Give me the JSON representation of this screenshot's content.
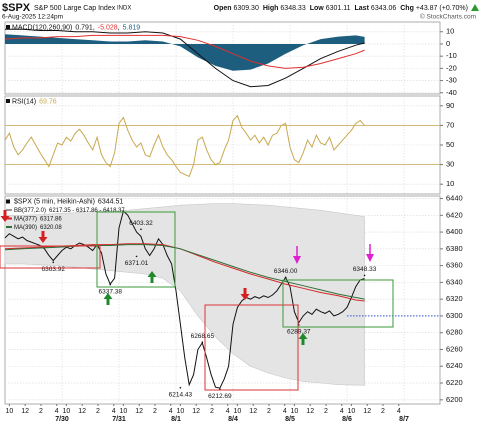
{
  "header": {
    "symbol": "$SPX",
    "name": "S&P 500 Large Cap Index",
    "exchange": "INDX",
    "date": "6-Aug-2025 12:24pm",
    "copyright": "© StockCharts.com",
    "quote": [
      {
        "label": "Open",
        "value": "6309.30"
      },
      {
        "label": "High",
        "value": "6348.33"
      },
      {
        "label": "Low",
        "value": "6301.11"
      },
      {
        "label": "Last",
        "value": "6343.06"
      },
      {
        "label": "Chg",
        "value": "+43.87 (+0.70%)"
      }
    ]
  },
  "chart_data": [
    {
      "type": "line",
      "title": "MACD(120,260,90)",
      "legend_separator": ",",
      "xlim": [
        0,
        49.6
      ],
      "ylim": [
        -41,
        18
      ],
      "yticks": [
        10,
        0,
        -10,
        -20,
        -30,
        -40
      ],
      "x": [
        0,
        2,
        4,
        6,
        8,
        10,
        12,
        14,
        16,
        18,
        20,
        22,
        24,
        26,
        28,
        30,
        32,
        34,
        36,
        38,
        40,
        41
      ],
      "series": [
        {
          "color": "#111111",
          "values": [
            12,
            12,
            11,
            11,
            10,
            10,
            9,
            9,
            10,
            9,
            4,
            -8,
            -20,
            -30,
            -35,
            -34,
            -28,
            -20,
            -12,
            -6,
            -1,
            0.791
          ]
        },
        {
          "color": "#e03030",
          "values": [
            4,
            5,
            5,
            6,
            6,
            7,
            7,
            7,
            7,
            7,
            6,
            3,
            -2,
            -8,
            -14,
            -18,
            -20,
            -19,
            -16,
            -12,
            -8,
            -5.028
          ]
        },
        {
          "type": "area",
          "color": "#1d5e7e",
          "values": [
            8,
            7,
            6,
            5,
            4,
            3,
            2,
            2,
            3,
            2,
            -2,
            -11,
            -18,
            -22,
            -21,
            -16,
            -8,
            -1,
            4,
            6,
            7,
            5.819
          ]
        }
      ]
    },
    {
      "type": "line",
      "title": "RSI(14)",
      "xlim": [
        0,
        49.6
      ],
      "ylim": [
        0,
        100
      ],
      "yticks": [
        90,
        70,
        50,
        30,
        10
      ],
      "thresholds": [
        70,
        30
      ],
      "threshold_color": "#c9a84f",
      "x": [
        0,
        0.5,
        1,
        1.5,
        2,
        2.5,
        3,
        3.5,
        4,
        4.5,
        5,
        5.5,
        6,
        6.5,
        7,
        7.5,
        8,
        8.5,
        9,
        9.5,
        10,
        10.5,
        11,
        11.5,
        12,
        12.5,
        13,
        13.5,
        14,
        14.5,
        15,
        15.5,
        16,
        16.5,
        17,
        17.5,
        18,
        18.5,
        19,
        19.5,
        20,
        20.5,
        21,
        21.5,
        22,
        22.5,
        23,
        23.5,
        24,
        24.5,
        25,
        25.5,
        26,
        26.5,
        27,
        27.5,
        28,
        28.5,
        29,
        29.5,
        30,
        30.5,
        31,
        31.5,
        32,
        32.5,
        33,
        33.5,
        34,
        34.5,
        35,
        35.5,
        36,
        36.5,
        37,
        37.5,
        38,
        38.5,
        39,
        39.5,
        40,
        40.5,
        41
      ],
      "series": [
        {
          "color": "#c9a84f",
          "values": [
            55,
            62,
            48,
            40,
            45,
            52,
            58,
            50,
            42,
            35,
            28,
            40,
            52,
            50,
            58,
            54,
            62,
            66,
            60,
            52,
            45,
            58,
            40,
            32,
            28,
            42,
            72,
            78,
            65,
            55,
            48,
            52,
            40,
            38,
            50,
            60,
            48,
            40,
            35,
            28,
            22,
            20,
            18,
            30,
            55,
            58,
            45,
            35,
            30,
            32,
            45,
            55,
            75,
            80,
            68,
            62,
            55,
            60,
            52,
            58,
            50,
            60,
            62,
            70,
            72,
            48,
            35,
            32,
            42,
            55,
            48,
            60,
            52,
            50,
            58,
            45,
            50,
            55,
            60,
            65,
            72,
            75,
            69.76
          ]
        }
      ]
    },
    {
      "type": "line",
      "xlim": [
        0,
        49.6
      ],
      "ylim": [
        6195,
        6443
      ],
      "yticks": [
        6440,
        6420,
        6400,
        6380,
        6360,
        6340,
        6320,
        6300,
        6280,
        6260,
        6240,
        6220,
        6200
      ],
      "xticks": [
        {
          "value": 0.5,
          "label": "10"
        },
        {
          "value": 2.3,
          "label": "12"
        },
        {
          "value": 4.1,
          "label": "2"
        },
        {
          "value": 5.9,
          "label": "4"
        },
        {
          "value": 7,
          "label": "10"
        },
        {
          "value": 8.8,
          "label": "12"
        },
        {
          "value": 10.6,
          "label": "2"
        },
        {
          "value": 12.4,
          "label": "4"
        },
        {
          "value": 13.5,
          "label": "10"
        },
        {
          "value": 15.3,
          "label": "12"
        },
        {
          "value": 17.1,
          "label": "2"
        },
        {
          "value": 18.9,
          "label": "4"
        },
        {
          "value": 20,
          "label": "10"
        },
        {
          "value": 21.8,
          "label": "12"
        },
        {
          "value": 23.6,
          "label": "2"
        },
        {
          "value": 25.4,
          "label": "4"
        },
        {
          "value": 26.5,
          "label": "10"
        },
        {
          "value": 28.3,
          "label": "12"
        },
        {
          "value": 30.1,
          "label": "2"
        },
        {
          "value": 31.9,
          "label": "4"
        },
        {
          "value": 33,
          "label": "10"
        },
        {
          "value": 34.8,
          "label": "12"
        },
        {
          "value": 36.6,
          "label": "2"
        },
        {
          "value": 38.4,
          "label": "4"
        },
        {
          "value": 39.5,
          "label": "10"
        },
        {
          "value": 41.3,
          "label": "12"
        },
        {
          "value": 43.1,
          "label": "2"
        },
        {
          "value": 44.9,
          "label": "4"
        }
      ],
      "date_ticks": [
        {
          "value": 6.5,
          "label": "7/30"
        },
        {
          "value": 13,
          "label": "7/31"
        },
        {
          "value": 19.5,
          "label": "8/1"
        },
        {
          "value": 26,
          "label": "8/4"
        },
        {
          "value": 32.5,
          "label": "8/5"
        },
        {
          "value": 39,
          "label": "8/6"
        },
        {
          "value": 45.5,
          "label": "8/7"
        }
      ],
      "series": [
        {
          "name": "$SPX (5 min, Heikin-Ashi)",
          "color": "#111111",
          "x": [
            0,
            0.5,
            1,
            1.5,
            2,
            2.5,
            3,
            3.5,
            4,
            4.5,
            5,
            5.5,
            6,
            6.5,
            7,
            7.5,
            8,
            8.5,
            9,
            9.5,
            10,
            10.5,
            11,
            11.5,
            12,
            12.5,
            13,
            13.5,
            14,
            14.5,
            15,
            15.5,
            16,
            16.5,
            17,
            17.5,
            18,
            18.5,
            19,
            19.5,
            20,
            20.5,
            21,
            21.5,
            22,
            22.5,
            23,
            23.5,
            24,
            24.5,
            25,
            25.5,
            26,
            26.5,
            27,
            27.5,
            28,
            28.5,
            29,
            29.5,
            30,
            30.5,
            31,
            31.5,
            32,
            32.5,
            33,
            33.5,
            34,
            34.5,
            35,
            35.5,
            36,
            36.5,
            37,
            37.5,
            38,
            38.5,
            39,
            39.5,
            40,
            40.5,
            41
          ],
          "values": [
            6393,
            6398,
            6395,
            6392,
            6394,
            6390,
            6388,
            6386,
            6384,
            6380,
            6372,
            6366,
            6372,
            6378,
            6382,
            6380,
            6384,
            6387,
            6385,
            6382,
            6378,
            6385,
            6375,
            6350,
            6338,
            6345,
            6405,
            6425,
            6420,
            6410,
            6400,
            6395,
            6380,
            6372,
            6380,
            6392,
            6385,
            6372,
            6362,
            6330,
            6290,
            6250,
            6218,
            6230,
            6260,
            6268,
            6250,
            6230,
            6215,
            6214,
            6225,
            6240,
            6290,
            6310,
            6318,
            6322,
            6320,
            6323,
            6321,
            6324,
            6322,
            6325,
            6330,
            6338,
            6346,
            6335,
            6305,
            6292,
            6300,
            6305,
            6302,
            6308,
            6305,
            6303,
            6306,
            6300,
            6302,
            6305,
            6310,
            6322,
            6335,
            6343,
            6344.51
          ]
        },
        {
          "name": "BB(377,2.0)",
          "type": "band",
          "legend_values": "6217.35 - 6317.86 - 6418.37",
          "color": "#e4e4e4",
          "x": [
            0,
            2,
            4,
            6,
            8,
            10,
            12,
            14,
            16,
            18,
            20,
            22,
            24,
            26,
            28,
            30,
            32,
            34,
            36,
            38,
            40,
            41
          ],
          "upper": [
            6420,
            6420,
            6421,
            6422,
            6423,
            6425,
            6425,
            6426,
            6428,
            6430,
            6432,
            6433,
            6434,
            6434,
            6433,
            6432,
            6430,
            6428,
            6426,
            6423,
            6420,
            6418.37
          ],
          "lower": [
            6362,
            6362,
            6361,
            6360,
            6358,
            6356,
            6354,
            6352,
            6350,
            6345,
            6330,
            6300,
            6275,
            6255,
            6240,
            6232,
            6226,
            6222,
            6220,
            6218,
            6217.5,
            6217.35
          ]
        },
        {
          "name": "MA(377)",
          "color": "#d62728",
          "x": [
            0,
            2,
            4,
            6,
            8,
            10,
            12,
            14,
            16,
            18,
            20,
            22,
            24,
            26,
            28,
            30,
            32,
            34,
            36,
            38,
            40,
            41
          ],
          "values": [
            6380,
            6381,
            6382,
            6383,
            6384,
            6385,
            6385,
            6386,
            6386,
            6385,
            6380,
            6372,
            6364,
            6357,
            6350,
            6344,
            6338,
            6333,
            6328,
            6324,
            6319,
            6317.86
          ]
        },
        {
          "name": "MA(390)",
          "color": "#2f6f3a",
          "x": [
            0,
            2,
            4,
            6,
            8,
            10,
            12,
            14,
            16,
            18,
            20,
            22,
            24,
            26,
            28,
            30,
            32,
            34,
            36,
            38,
            40,
            41
          ],
          "values": [
            6379,
            6380,
            6381,
            6382,
            6383,
            6384,
            6384,
            6385,
            6385,
            6384,
            6380,
            6373,
            6366,
            6359,
            6352,
            6346,
            6341,
            6336,
            6331,
            6326,
            6322,
            6320.08
          ]
        }
      ],
      "annotations": [
        {
          "x": 5.5,
          "value": 6363.92
        },
        {
          "x": 12,
          "value": 6337.38
        },
        {
          "x": 15.5,
          "value": 6403.32
        },
        {
          "x": 15,
          "value": 6371.01
        },
        {
          "x": 20,
          "value": 6214.43
        },
        {
          "x": 22.5,
          "value": 6268.65
        },
        {
          "x": 24.5,
          "value": 6212.69
        },
        {
          "x": 32,
          "value": 6346,
          "label": "6346.00"
        },
        {
          "x": 33.5,
          "value": 6289.37
        },
        {
          "x": 41,
          "value": 6348.33
        }
      ],
      "reference_line": {
        "value": 6300,
        "from_x": 39,
        "color": "#3050d0"
      }
    }
  ]
}
